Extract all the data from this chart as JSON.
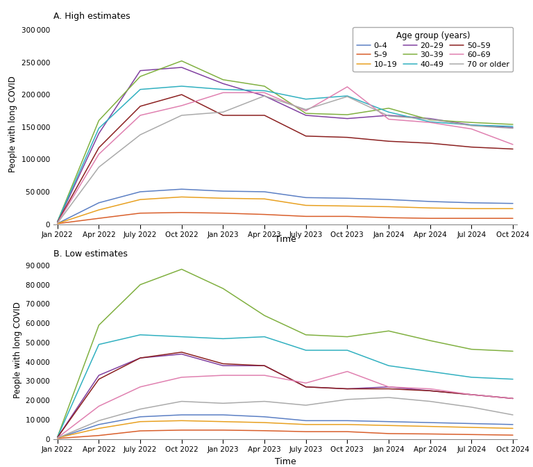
{
  "title_high": "A. High estimates",
  "title_low": "B. Low estimates",
  "xlabel": "Time",
  "ylabel": "People with long COVID",
  "legend_title": "Age group (years)",
  "age_groups": [
    "0–4",
    "5–9",
    "10–19",
    "20–29",
    "30–39",
    "40–49",
    "50–59",
    "60–69",
    "70 or older"
  ],
  "colors": [
    "#5B7FC4",
    "#D95F2B",
    "#E8A020",
    "#8040A0",
    "#80B040",
    "#30B0C0",
    "#8B2020",
    "#E080B0",
    "#AAAAAA"
  ],
  "tick_dates": [
    "Jan 2022",
    "Apr 2022",
    "July 2022",
    "Oct 2022",
    "Jan 2023",
    "Apr 2023",
    "July 2023",
    "Oct 2023",
    "Jan 2024",
    "Apr 2024",
    "Jul 2024",
    "Oct 2024"
  ],
  "x_positions": [
    0,
    3,
    6,
    9,
    12,
    15,
    18,
    21,
    24,
    27,
    30,
    33
  ],
  "high": {
    "0-4": [
      1000,
      33000,
      50000,
      54000,
      51000,
      50000,
      41000,
      40000,
      38000,
      35000,
      33000,
      32000
    ],
    "5-9": [
      800,
      9000,
      17000,
      18000,
      17000,
      15000,
      12000,
      12000,
      10000,
      9000,
      9000,
      9000
    ],
    "10-19": [
      1000,
      22000,
      38000,
      42000,
      40000,
      39000,
      29000,
      28000,
      27000,
      25000,
      24000,
      24000
    ],
    "20-29": [
      3000,
      140000,
      237000,
      242000,
      217000,
      198000,
      168000,
      163000,
      168000,
      163000,
      153000,
      149000
    ],
    "30-39": [
      4000,
      160000,
      228000,
      252000,
      223000,
      213000,
      171000,
      169000,
      179000,
      161000,
      157000,
      154000
    ],
    "40-49": [
      4000,
      148000,
      208000,
      213000,
      208000,
      206000,
      193000,
      198000,
      173000,
      158000,
      153000,
      151000
    ],
    "50-59": [
      3000,
      118000,
      182000,
      200000,
      168000,
      168000,
      136000,
      134000,
      128000,
      125000,
      119000,
      116000
    ],
    "60-69": [
      2000,
      108000,
      168000,
      183000,
      203000,
      203000,
      175000,
      212000,
      162000,
      157000,
      147000,
      123000
    ],
    "70 or older": [
      1500,
      88000,
      138000,
      168000,
      173000,
      198000,
      177000,
      197000,
      167000,
      162000,
      152000,
      148000
    ]
  },
  "low": {
    "0-4": [
      500,
      7500,
      11500,
      12500,
      12500,
      11500,
      9500,
      9500,
      9000,
      8500,
      8000,
      7500
    ],
    "5-9": [
      300,
      1800,
      4200,
      4600,
      4600,
      4300,
      3800,
      3800,
      2800,
      2600,
      2300,
      2000
    ],
    "10-19": [
      600,
      5500,
      9000,
      9500,
      9000,
      8500,
      7500,
      7500,
      7000,
      6500,
      6000,
      5500
    ],
    "20-29": [
      800,
      33000,
      42000,
      44000,
      38000,
      38000,
      27000,
      26000,
      27000,
      25000,
      23000,
      21000
    ],
    "30-39": [
      1000,
      59000,
      80000,
      88000,
      78000,
      64000,
      54000,
      53000,
      56000,
      51000,
      46500,
      45500
    ],
    "40-49": [
      1000,
      49000,
      54000,
      53000,
      52000,
      53000,
      46000,
      46000,
      38000,
      35000,
      32000,
      31000
    ],
    "50-59": [
      800,
      31000,
      42000,
      45000,
      39000,
      38000,
      27000,
      26000,
      26000,
      25000,
      23000,
      21000
    ],
    "60-69": [
      600,
      17000,
      27000,
      32000,
      33000,
      33000,
      29000,
      35000,
      27000,
      26000,
      23000,
      21000
    ],
    "70 or older": [
      500,
      9500,
      15500,
      19500,
      18500,
      19500,
      17500,
      20500,
      21500,
      19500,
      16500,
      12500
    ]
  }
}
